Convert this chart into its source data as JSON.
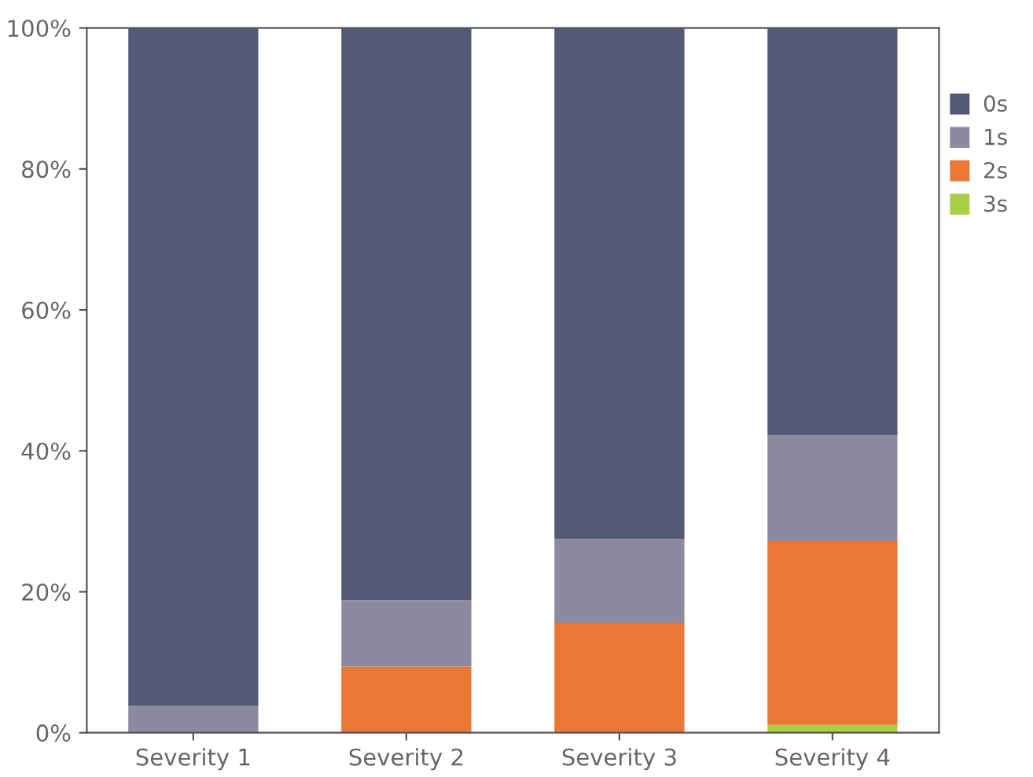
{
  "chart_data": {
    "type": "bar",
    "stacked": true,
    "categories": [
      "Severity 1",
      "Severity 2",
      "Severity 3",
      "Severity 4"
    ],
    "series": [
      {
        "name": "3s",
        "color": "#a8cf45",
        "values": [
          0,
          0,
          0,
          1.1
        ]
      },
      {
        "name": "2s",
        "color": "#e97835",
        "values": [
          0,
          9.4,
          15.6,
          26.1
        ]
      },
      {
        "name": "1s",
        "color": "#8c8a9e",
        "values": [
          3.8,
          9.4,
          11.9,
          15.0
        ]
      },
      {
        "name": "0s",
        "color": "#545a75",
        "values": [
          96.2,
          81.2,
          72.5,
          57.8
        ]
      }
    ],
    "ylim": [
      0,
      100
    ],
    "yticks": [
      {
        "value": 0,
        "label": "0%"
      },
      {
        "value": 20,
        "label": "20%"
      },
      {
        "value": 40,
        "label": "40%"
      },
      {
        "value": 60,
        "label": "60%"
      },
      {
        "value": 80,
        "label": "80%"
      },
      {
        "value": 100,
        "label": "100%"
      }
    ],
    "grid": false,
    "legend": "right"
  }
}
